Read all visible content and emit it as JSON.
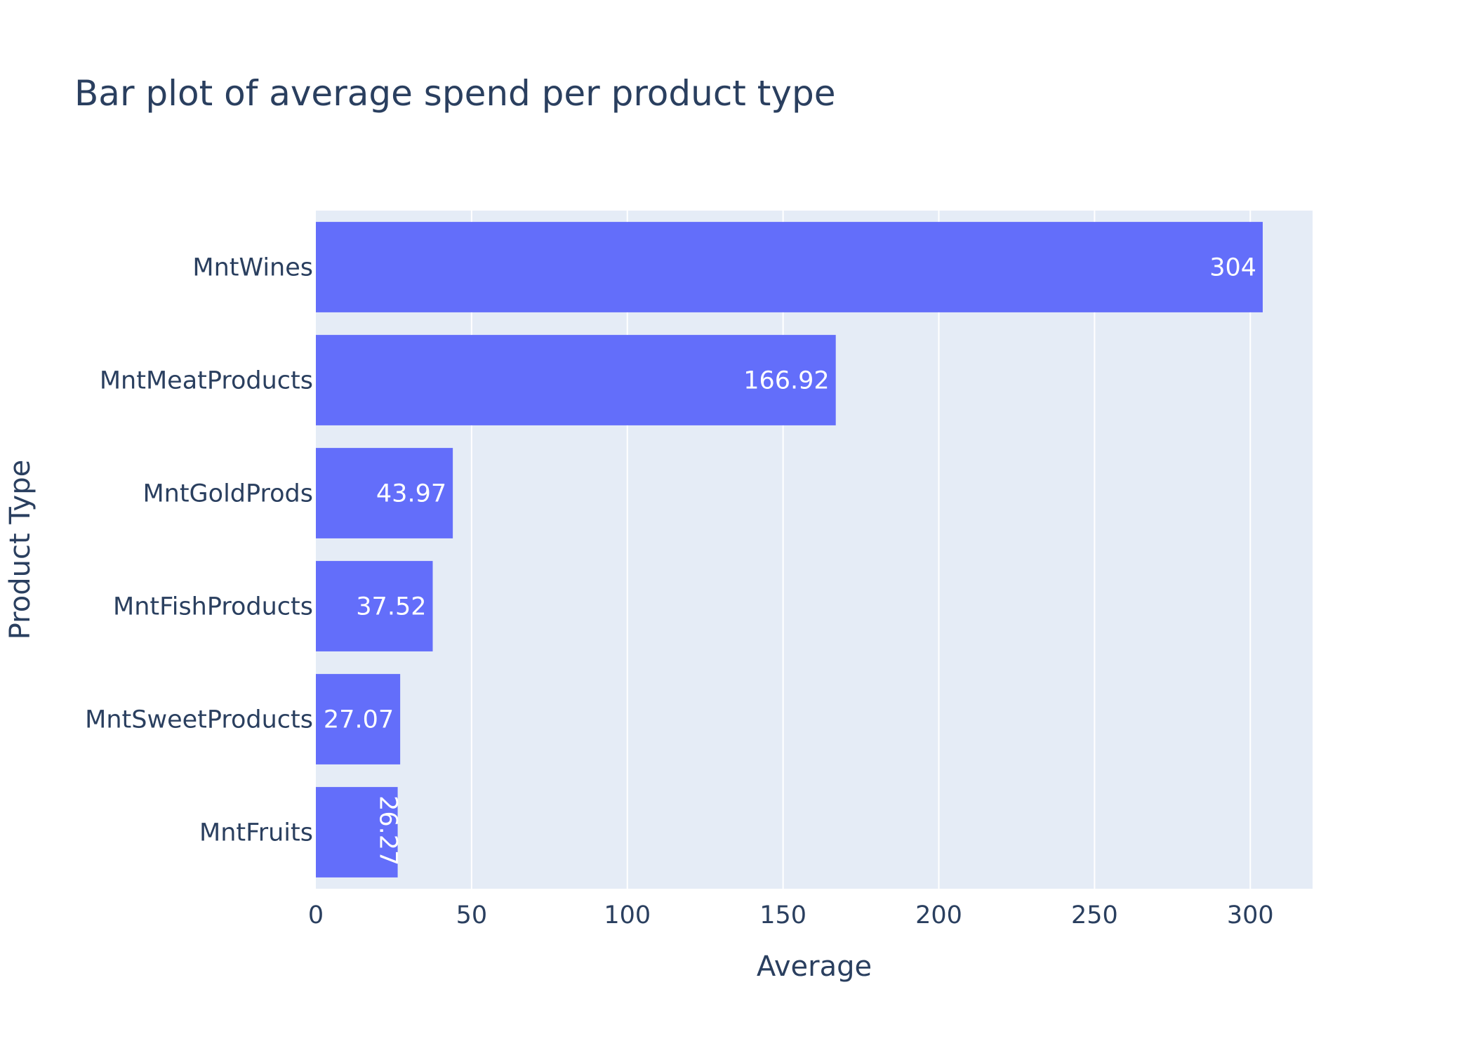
{
  "chart_data": {
    "type": "bar",
    "orientation": "horizontal",
    "title": "Bar plot of average spend per product type",
    "xlabel": "Average",
    "ylabel": "Product Type",
    "categories": [
      "MntWines",
      "MntMeatProducts",
      "MntGoldProds",
      "MntFishProducts",
      "MntSweetProducts",
      "MntFruits"
    ],
    "values": [
      304,
      166.92,
      43.97,
      37.52,
      27.07,
      26.27
    ],
    "value_labels": [
      "304",
      "166.92",
      "43.97",
      "37.52",
      "27.07",
      "26.27"
    ],
    "xlim": [
      0,
      320
    ],
    "xticks": [
      0,
      50,
      100,
      150,
      200,
      250,
      300
    ],
    "xtick_labels": [
      "0",
      "50",
      "100",
      "150",
      "200",
      "250",
      "300"
    ],
    "grid": true,
    "colors": {
      "bar": "#636efa",
      "plot_bg": "#e5ecf6",
      "grid": "#ffffff",
      "text": "#2a3f5f",
      "bar_text": "#ffffff"
    }
  }
}
